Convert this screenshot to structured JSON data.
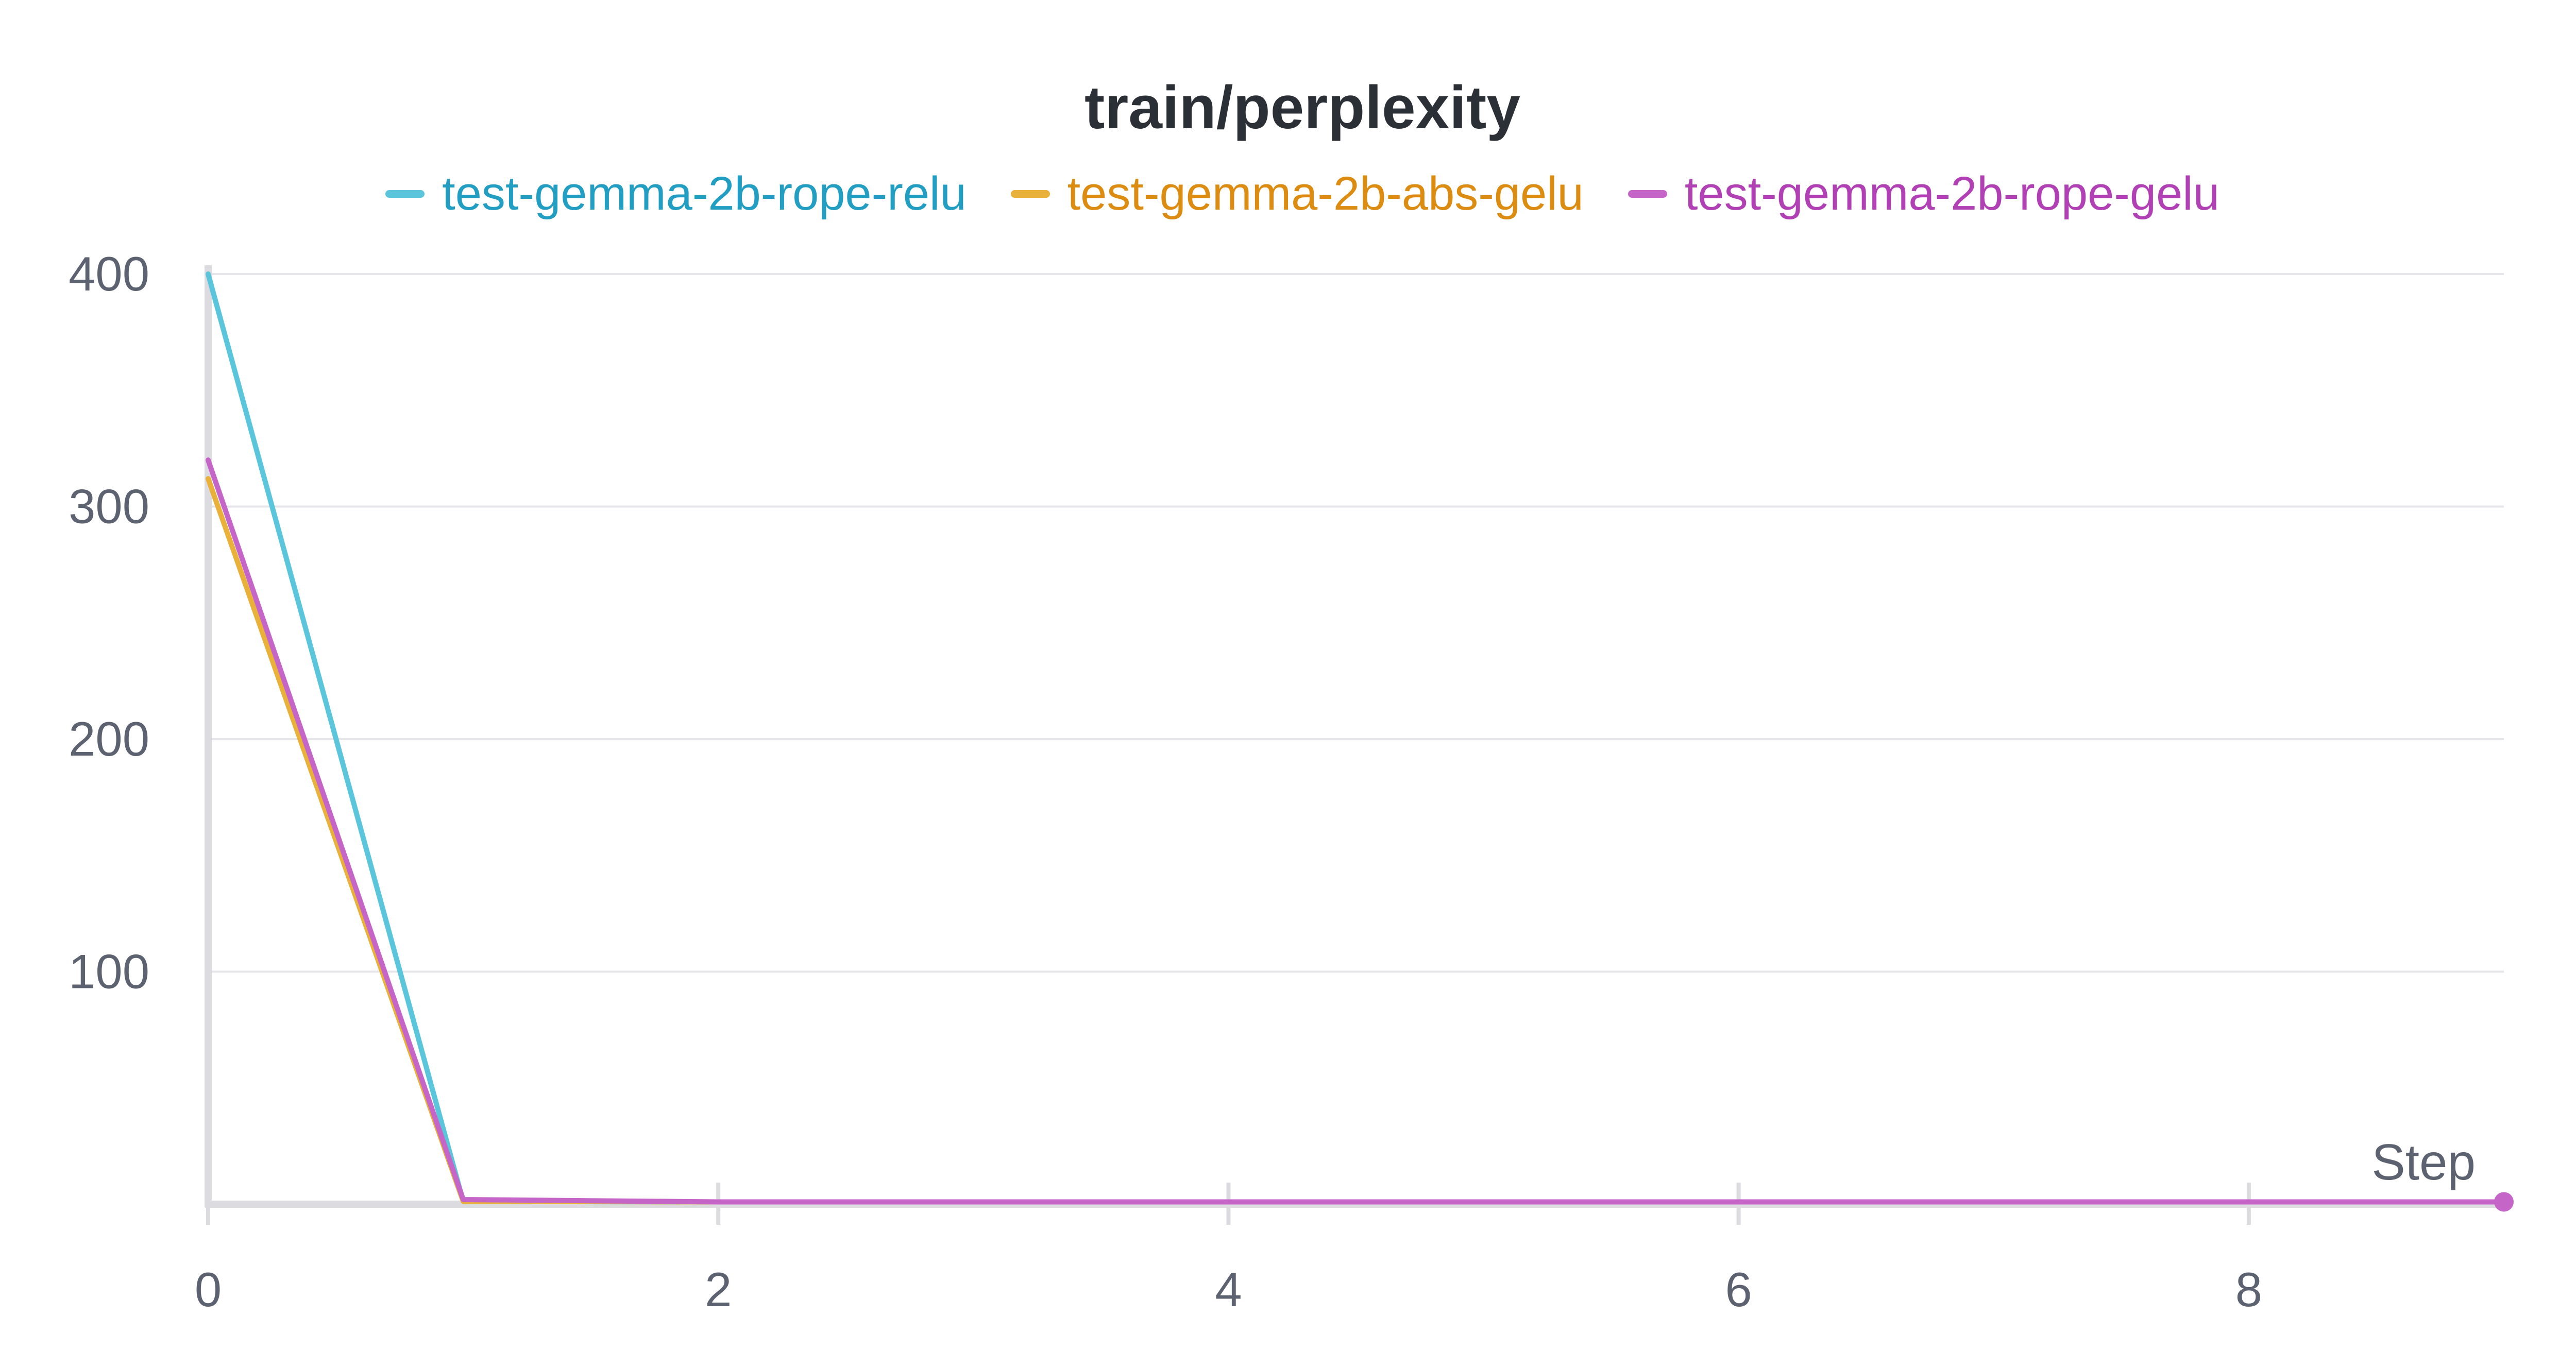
{
  "chart_data": {
    "type": "line",
    "title": "train/perplexity",
    "xlabel": "Step",
    "ylabel": "",
    "xlim": [
      0,
      9
    ],
    "ylim": [
      0,
      400
    ],
    "xticks": [
      0,
      2,
      4,
      6,
      8
    ],
    "xtick_labels": [
      "0",
      "2",
      "4",
      "6",
      "8"
    ],
    "yticks": [
      100,
      200,
      300,
      400
    ],
    "ytick_labels": [
      "100",
      "200",
      "300",
      "400"
    ],
    "grid": "horizontal",
    "legend_position": "top-center",
    "series": [
      {
        "name": "test-gemma-2b-rope-relu",
        "color": "#5bc5db",
        "label_color": "#229ec2",
        "x": [
          0,
          1,
          2,
          3,
          4,
          5,
          6,
          7,
          8,
          9
        ],
        "y": [
          400,
          1.2,
          1.0,
          1.0,
          1.0,
          1.0,
          1.0,
          1.0,
          1.0,
          1.0
        ]
      },
      {
        "name": "test-gemma-2b-abs-gelu",
        "color": "#e9b03a",
        "label_color": "#dd8c12",
        "x": [
          0,
          1,
          2,
          3,
          4,
          5,
          6,
          7,
          8,
          9
        ],
        "y": [
          312,
          1.2,
          1.0,
          1.0,
          1.0,
          1.0,
          1.0,
          1.0,
          1.0,
          1.0
        ]
      },
      {
        "name": "test-gemma-2b-rope-gelu",
        "color": "#c565c7",
        "label_color": "#b040b4",
        "x": [
          0,
          1,
          2,
          3,
          4,
          5,
          6,
          7,
          8,
          9
        ],
        "y": [
          320,
          2.0,
          1.0,
          1.0,
          1.0,
          1.0,
          1.0,
          1.0,
          1.0,
          1.0
        ]
      }
    ]
  }
}
